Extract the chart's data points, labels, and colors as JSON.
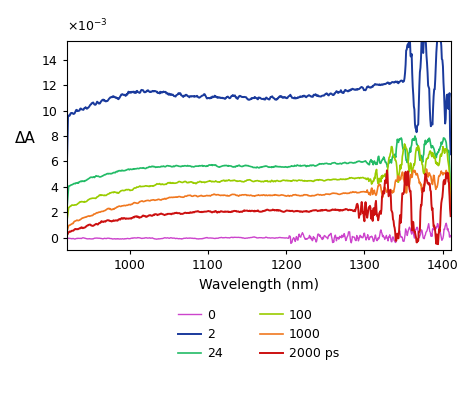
{
  "xlabel": "Wavelength (nm)",
  "ylabel": "ΔA",
  "xlim": [
    920,
    1410
  ],
  "ylim": [
    -1.0,
    15.5
  ],
  "yticks": [
    0,
    2,
    4,
    6,
    8,
    10,
    12,
    14
  ],
  "xticks": [
    1000,
    1100,
    1200,
    1300,
    1400
  ],
  "series": [
    {
      "label": "0",
      "color": "#cc44cc",
      "lw": 1.0
    },
    {
      "label": "2",
      "color": "#1a3a9c",
      "lw": 1.4
    },
    {
      "label": "24",
      "color": "#22bb66",
      "lw": 1.2
    },
    {
      "label": "100",
      "color": "#99cc00",
      "lw": 1.2
    },
    {
      "label": "1000",
      "color": "#f07820",
      "lw": 1.2
    },
    {
      "label": "2000 ps",
      "color": "#cc1010",
      "lw": 1.4
    }
  ]
}
